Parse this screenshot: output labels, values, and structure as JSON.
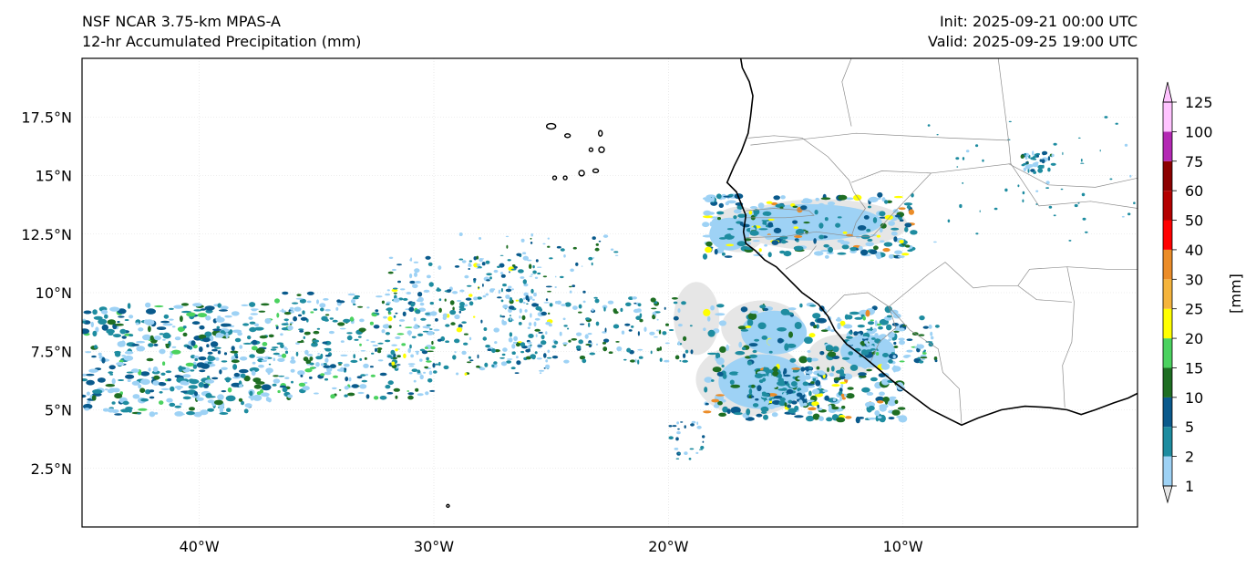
{
  "header": {
    "model": "NSF NCAR 3.75-km MPAS-A",
    "product": "12-hr Accumulated Precipitation (mm)",
    "init": "Init: 2025-09-21 00:00 UTC",
    "valid": "Valid: 2025-09-25 19:00 UTC"
  },
  "axes": {
    "lon_labels": [
      "40°W",
      "30°W",
      "20°W",
      "10°W"
    ],
    "lat_labels": [
      "17.5°N",
      "15°N",
      "12.5°N",
      "10°N",
      "7.5°N",
      "5°N",
      "2.5°N"
    ]
  },
  "colorbar": {
    "unit_label": "[mm]",
    "levels": [
      "1",
      "2",
      "5",
      "10",
      "15",
      "20",
      "25",
      "30",
      "40",
      "50",
      "60",
      "75",
      "100",
      "125"
    ],
    "colors": [
      "#e6e6e6",
      "#9ed2f5",
      "#1e8ca0",
      "#0a5a8c",
      "#1e6e23",
      "#4bd25f",
      "#ffff00",
      "#f5b43c",
      "#eb8c28",
      "#ff0000",
      "#b40000",
      "#8c0000",
      "#b428b4",
      "#ffc3ff"
    ]
  },
  "colors": {
    "coast": "#000000",
    "border": "#8c8c8c",
    "grid": "#dddddd"
  },
  "map_extent": {
    "lon": [
      -45,
      0
    ],
    "lat": [
      0,
      20
    ]
  }
}
